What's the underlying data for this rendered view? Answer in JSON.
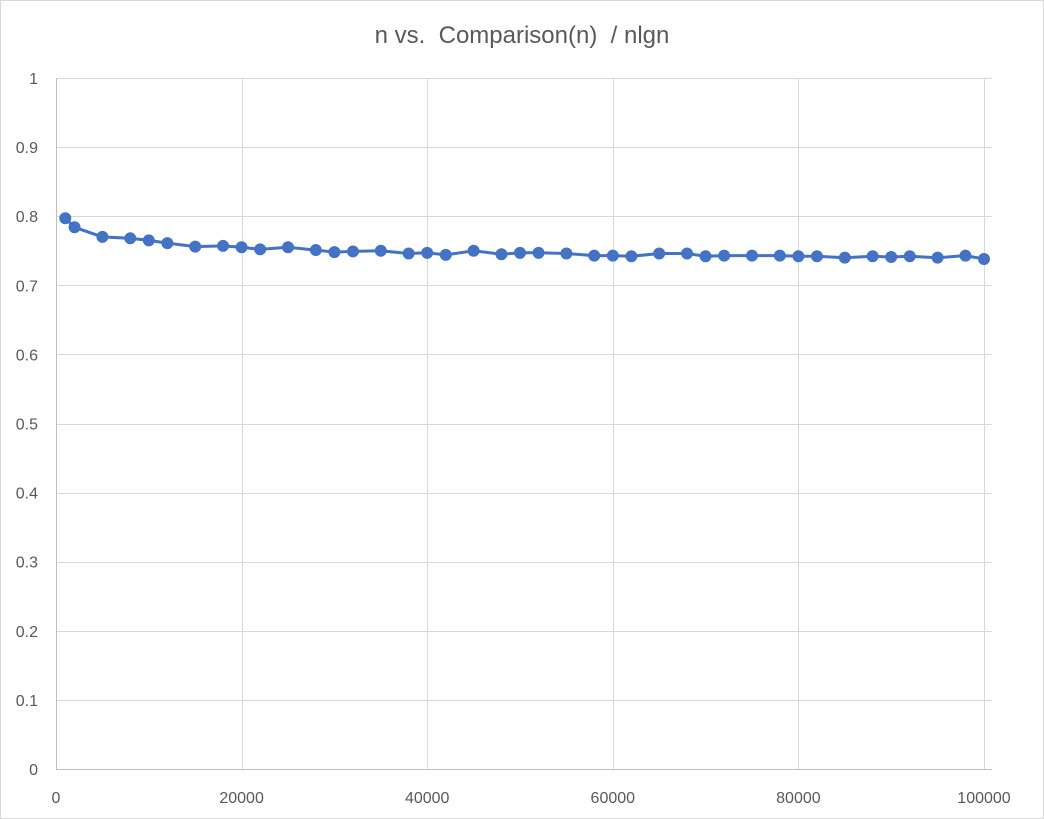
{
  "chart_data": {
    "type": "line",
    "title": "n vs.  Comparison(n)  / nlgn",
    "xlabel": "",
    "ylabel": "",
    "xlim": [
      0,
      100000
    ],
    "ylim": [
      0,
      1
    ],
    "x_ticks": [
      0,
      20000,
      40000,
      60000,
      80000,
      100000
    ],
    "y_ticks": [
      0,
      0.1,
      0.2,
      0.3,
      0.4,
      0.5,
      0.6,
      0.7,
      0.8,
      0.9,
      1
    ],
    "x_tick_labels": [
      "0",
      "20000",
      "40000",
      "60000",
      "80000",
      "100000"
    ],
    "y_tick_labels": [
      "0",
      "0.1",
      "0.2",
      "0.3",
      "0.4",
      "0.5",
      "0.6",
      "0.7",
      "0.8",
      "0.9",
      "1"
    ],
    "grid": true,
    "legend": "none",
    "marker": "circle",
    "series": [
      {
        "color": "#4472c4",
        "x": [
          1000,
          2000,
          5000,
          8000,
          10000,
          12000,
          15000,
          18000,
          20000,
          22000,
          25000,
          28000,
          30000,
          32000,
          35000,
          38000,
          40000,
          42000,
          45000,
          48000,
          50000,
          52000,
          55000,
          58000,
          60000,
          62000,
          65000,
          68000,
          70000,
          72000,
          75000,
          78000,
          80000,
          82000,
          85000,
          88000,
          90000,
          92000,
          95000,
          98000,
          100000
        ],
        "y": [
          0.797,
          0.784,
          0.77,
          0.768,
          0.765,
          0.761,
          0.756,
          0.757,
          0.755,
          0.752,
          0.755,
          0.751,
          0.748,
          0.749,
          0.75,
          0.746,
          0.747,
          0.744,
          0.75,
          0.745,
          0.747,
          0.747,
          0.746,
          0.743,
          0.743,
          0.742,
          0.746,
          0.746,
          0.742,
          0.743,
          0.743,
          0.743,
          0.742,
          0.742,
          0.74,
          0.742,
          0.741,
          0.742,
          0.74,
          0.743,
          0.738
        ]
      }
    ]
  }
}
